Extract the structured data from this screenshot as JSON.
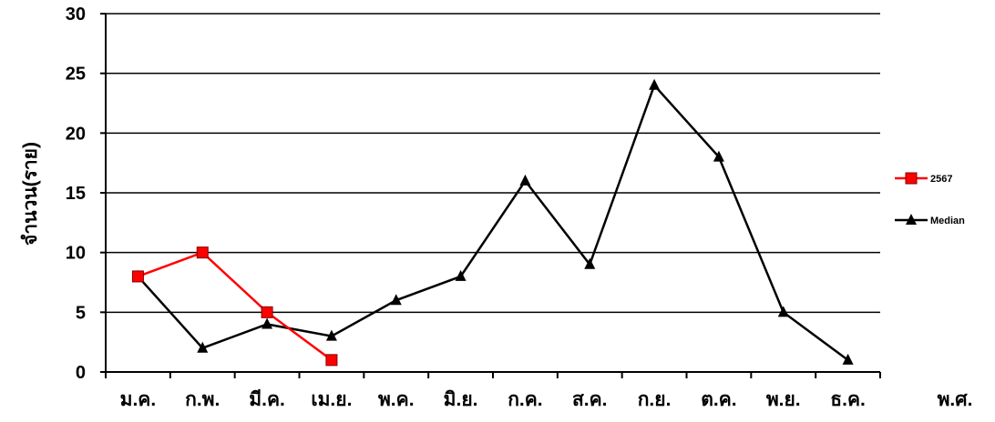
{
  "chart_data": {
    "type": "line",
    "categories": [
      "ม.ค.",
      "ก.พ.",
      "มี.ค.",
      "เม.ย.",
      "พ.ค.",
      "มิ.ย.",
      "ก.ค.",
      "ส.ค.",
      "ก.ย.",
      "ต.ค.",
      "พ.ย.",
      "ธ.ค."
    ],
    "series": [
      {
        "name": "2567",
        "color": "#ff0000",
        "marker": "square",
        "values": [
          8,
          10,
          5,
          1,
          null,
          null,
          null,
          null,
          null,
          null,
          null,
          null
        ]
      },
      {
        "name": "Median",
        "color": "#000000",
        "marker": "triangle",
        "values": [
          8,
          2,
          4,
          3,
          6,
          8,
          16,
          9,
          24,
          18,
          5,
          1
        ]
      }
    ],
    "title": "",
    "xlabel": "พ.ศ.",
    "ylabel": "จำนวน(ราย)",
    "ylim": [
      0,
      30
    ],
    "yticks": [
      0,
      5,
      10,
      15,
      20,
      25,
      30
    ],
    "grid": true,
    "legend_position": "right"
  }
}
